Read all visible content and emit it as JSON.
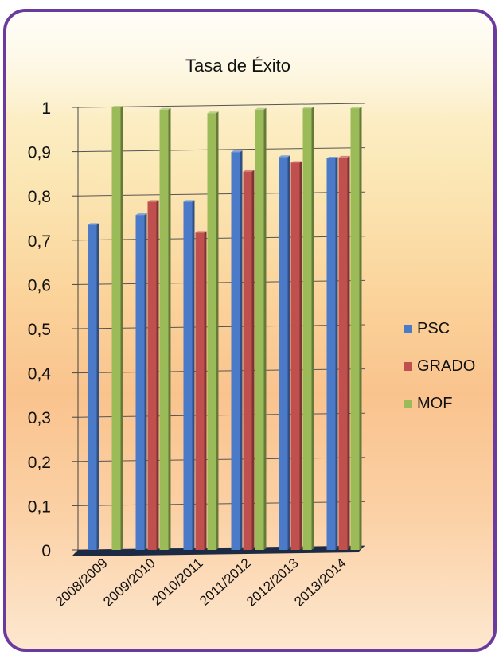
{
  "chart_data": {
    "type": "bar",
    "title": "Tasa de Éxito",
    "categories": [
      "2008/2009",
      "2009/2010",
      "2010/2011",
      "2011/2012",
      "2012/2013",
      "2013/2014"
    ],
    "series": [
      {
        "name": "PSC",
        "values": [
          0.735,
          0.757,
          0.787,
          0.899,
          0.888,
          0.885
        ],
        "color": "#4a7ac8"
      },
      {
        "name": "GRADO",
        "values": [
          null,
          0.787,
          0.717,
          0.855,
          0.875,
          0.887
        ],
        "color": "#c0504d"
      },
      {
        "name": "MOF",
        "values": [
          1.0,
          0.995,
          0.987,
          0.995,
          0.998,
          0.998
        ],
        "color": "#9bbb59"
      }
    ],
    "yticks": [
      "0",
      "0,1",
      "0,2",
      "0,3",
      "0,4",
      "0,5",
      "0,6",
      "0,7",
      "0,8",
      "0,9",
      "1"
    ],
    "ylim": [
      0,
      1
    ],
    "grid": true,
    "legend_position": "right",
    "frame_color": "#6a3a9e"
  }
}
